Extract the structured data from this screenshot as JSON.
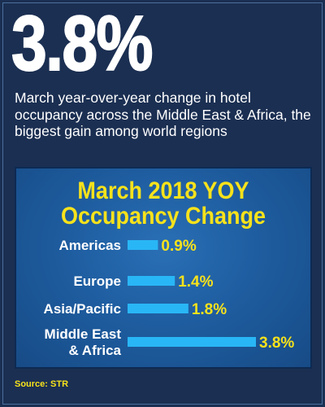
{
  "headline": {
    "big_number": "3.8%",
    "description": "March year-over-year change in hotel occupancy across the Middle East & Africa, the biggest gain among world regions"
  },
  "colors": {
    "background": "#1b2f52",
    "panel": "#1e5da0",
    "title": "#f7e21b",
    "bar": "#29b6f6",
    "value_text": "#f7e21b",
    "label_text": "#ffffff"
  },
  "chart_data": {
    "type": "bar",
    "orientation": "horizontal",
    "title_line1": "March 2018 YOY",
    "title_line2": "Occupancy Change",
    "categories": [
      [
        "Americas"
      ],
      [
        "Europe"
      ],
      [
        "Asia/Pacific"
      ],
      [
        "Middle East",
        "& Africa"
      ]
    ],
    "values": [
      0.9,
      1.4,
      1.8,
      3.8
    ],
    "value_labels": [
      "0.9%",
      "1.4%",
      "1.8%",
      "3.8%"
    ],
    "xlim": [
      0,
      3.8
    ],
    "grid": false,
    "legend": "none"
  },
  "source": "Source: STR"
}
